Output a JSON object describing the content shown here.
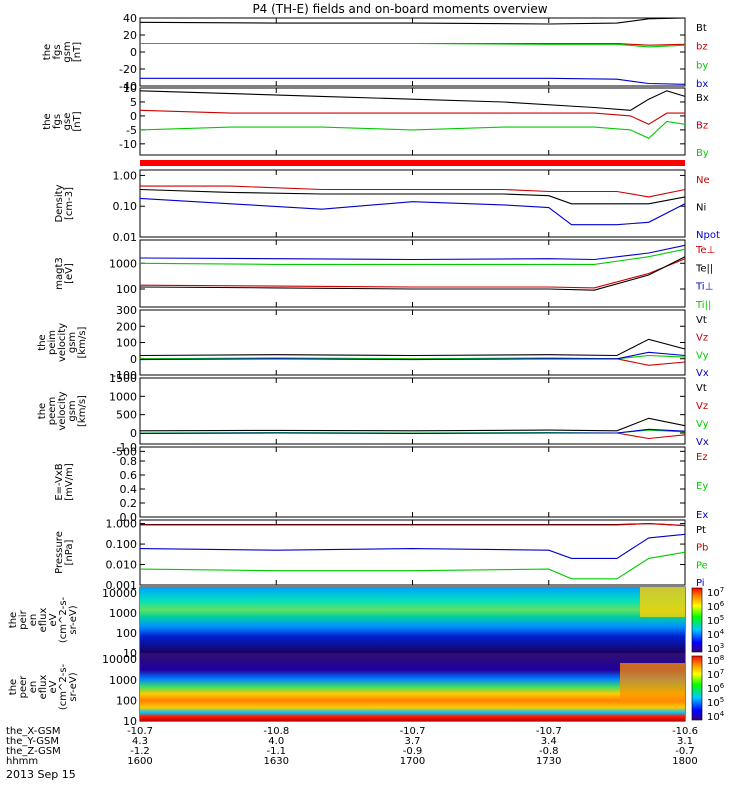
{
  "title": "P4 (TH-E) fields and on-board moments overview",
  "date_label": "2013 Sep 15",
  "time_axis": {
    "start": "1600",
    "end": "1800",
    "ticks": [
      "1600",
      "1630",
      "1700",
      "1730",
      "1800"
    ]
  },
  "ephemeris": {
    "rows": [
      {
        "label": "the_X-GSM",
        "values": [
          "-10.7",
          "-10.8",
          "-10.7",
          "-10.7",
          "-10.6"
        ]
      },
      {
        "label": "the_Y-GSM",
        "values": [
          "4.3",
          "4.0",
          "3.7",
          "3.4",
          "3.1"
        ]
      },
      {
        "label": "the_Z-GSM",
        "values": [
          "-1.2",
          "-1.1",
          "-0.9",
          "-0.8",
          "-0.7"
        ]
      },
      {
        "label": "hhmm",
        "values": [
          "1600",
          "1630",
          "1700",
          "1730",
          "1800"
        ]
      }
    ]
  },
  "colors": {
    "black": "#000000",
    "red": "#cc0000",
    "green": "#00cc00",
    "blue": "#0000cc"
  },
  "chart_data": [
    {
      "type": "line",
      "ylabel": [
        "the",
        "fgs",
        "gsm",
        "[nT]"
      ],
      "ylim": [
        -40,
        40
      ],
      "yticks": [
        "40",
        "20",
        "0",
        "-20",
        "-40"
      ],
      "series": [
        {
          "name": "Bt",
          "color": "#000000",
          "x": [
            1600,
            1630,
            1700,
            1730,
            1745,
            1752,
            1800
          ],
          "values": [
            35,
            34,
            34,
            33,
            34,
            39,
            40
          ]
        },
        {
          "name": "bz",
          "color": "#cc0000",
          "x": [
            1600,
            1630,
            1700,
            1730,
            1745,
            1752,
            1800
          ],
          "values": [
            10,
            10,
            10,
            10,
            10,
            8,
            9
          ]
        },
        {
          "name": "by",
          "color": "#00cc00",
          "x": [
            1600,
            1630,
            1700,
            1730,
            1745,
            1752,
            1800
          ],
          "values": [
            10,
            10,
            10,
            9,
            9,
            6,
            8
          ]
        },
        {
          "name": "bx",
          "color": "#0000cc",
          "x": [
            1600,
            1630,
            1700,
            1730,
            1745,
            1752,
            1800
          ],
          "values": [
            -31,
            -31,
            -31,
            -31,
            -32,
            -37,
            -38
          ]
        }
      ]
    },
    {
      "type": "line",
      "ylabel": [
        "the",
        "fgs",
        "gse",
        "[nT]"
      ],
      "ylim": [
        -14,
        10
      ],
      "yticks": [
        "10",
        "5",
        "0",
        "-5",
        "-10"
      ],
      "series": [
        {
          "name": "Bx",
          "color": "#000000",
          "x": [
            1600,
            1620,
            1640,
            1700,
            1720,
            1740,
            1748,
            1752,
            1756,
            1800
          ],
          "values": [
            9,
            8,
            7,
            6,
            5,
            3,
            2,
            6,
            9,
            7
          ]
        },
        {
          "name": "Bz",
          "color": "#cc0000",
          "x": [
            1600,
            1620,
            1640,
            1700,
            1720,
            1740,
            1748,
            1752,
            1756,
            1800
          ],
          "values": [
            2,
            1,
            1,
            1,
            1,
            1,
            0,
            -3,
            1,
            1
          ]
        },
        {
          "name": "By",
          "color": "#00cc00",
          "x": [
            1600,
            1620,
            1640,
            1700,
            1720,
            1740,
            1748,
            1752,
            1756,
            1800
          ],
          "values": [
            -5,
            -4,
            -4,
            -5,
            -4,
            -4,
            -5,
            -8,
            -2,
            -3
          ]
        }
      ]
    },
    {
      "type": "line",
      "scale": "log",
      "ylabel": [
        "Density",
        "[cm-3]"
      ],
      "ylim": [
        0.01,
        1.5
      ],
      "yticks": [
        "1.00",
        "0.10",
        "0.01"
      ],
      "series": [
        {
          "name": "Ne",
          "color": "#cc0000",
          "x": [
            1600,
            1620,
            1640,
            1700,
            1720,
            1730,
            1735,
            1745,
            1752,
            1800
          ],
          "values": [
            0.45,
            0.45,
            0.35,
            0.35,
            0.35,
            0.3,
            0.3,
            0.3,
            0.2,
            0.35
          ]
        },
        {
          "name": "Ni",
          "color": "#000000",
          "x": [
            1600,
            1620,
            1640,
            1700,
            1720,
            1730,
            1735,
            1745,
            1752,
            1800
          ],
          "values": [
            0.35,
            0.28,
            0.25,
            0.25,
            0.25,
            0.22,
            0.12,
            0.12,
            0.12,
            0.2
          ]
        },
        {
          "name": "Npot",
          "color": "#0000cc",
          "x": [
            1600,
            1620,
            1640,
            1700,
            1720,
            1730,
            1735,
            1745,
            1752,
            1800
          ],
          "values": [
            0.18,
            0.12,
            0.08,
            0.14,
            0.11,
            0.09,
            0.025,
            0.025,
            0.03,
            0.12
          ]
        }
      ]
    },
    {
      "type": "line",
      "scale": "log",
      "ylabel": [
        "magt3",
        "[eV]"
      ],
      "ylim": [
        20,
        8000
      ],
      "yticks": [
        "1000",
        "100"
      ],
      "series": [
        {
          "name": "Te⊥",
          "color": "#cc0000",
          "x": [
            1600,
            1630,
            1700,
            1730,
            1740,
            1752,
            1800
          ],
          "values": [
            140,
            130,
            120,
            120,
            110,
            400,
            1500
          ]
        },
        {
          "name": "Te||",
          "color": "#000000",
          "x": [
            1600,
            1630,
            1700,
            1730,
            1740,
            1752,
            1800
          ],
          "values": [
            120,
            110,
            100,
            100,
            90,
            350,
            1800
          ]
        },
        {
          "name": "Ti⊥",
          "color": "#0000cc",
          "x": [
            1600,
            1630,
            1700,
            1730,
            1740,
            1752,
            1800
          ],
          "values": [
            1600,
            1500,
            1400,
            1500,
            1400,
            2500,
            5000
          ]
        },
        {
          "name": "Ti||",
          "color": "#00cc00",
          "x": [
            1600,
            1630,
            1700,
            1730,
            1740,
            1752,
            1800
          ],
          "values": [
            1000,
            900,
            900,
            900,
            900,
            1800,
            3500
          ]
        }
      ]
    },
    {
      "type": "line",
      "ylabel": [
        "the",
        "peim",
        "velocity",
        "gsm",
        "[km/s]"
      ],
      "ylim": [
        -100,
        300
      ],
      "yticks": [
        "300",
        "200",
        "100",
        "0",
        "-100"
      ],
      "series": [
        {
          "name": "Vt",
          "color": "#000000",
          "x": [
            1600,
            1630,
            1700,
            1730,
            1745,
            1752,
            1800
          ],
          "values": [
            20,
            25,
            20,
            25,
            20,
            120,
            60
          ]
        },
        {
          "name": "Vz",
          "color": "#cc0000",
          "x": [
            1600,
            1630,
            1700,
            1730,
            1745,
            1752,
            1800
          ],
          "values": [
            0,
            0,
            0,
            0,
            0,
            -40,
            -20
          ]
        },
        {
          "name": "Vy",
          "color": "#00cc00",
          "x": [
            1600,
            1630,
            1700,
            1730,
            1745,
            1752,
            1800
          ],
          "values": [
            0,
            5,
            0,
            5,
            0,
            20,
            10
          ]
        },
        {
          "name": "Vx",
          "color": "#0000cc",
          "x": [
            1600,
            1630,
            1700,
            1730,
            1745,
            1752,
            1800
          ],
          "values": [
            -5,
            0,
            -5,
            0,
            0,
            40,
            20
          ]
        }
      ]
    },
    {
      "type": "line",
      "ylabel": [
        "the",
        "peem",
        "velocity",
        "gsm",
        "[km/s]"
      ],
      "ylim": [
        -300,
        1500
      ],
      "yticks": [
        "1500",
        "1000",
        "500",
        "0",
        "-500"
      ],
      "series": [
        {
          "name": "Vt",
          "color": "#000000",
          "x": [
            1600,
            1630,
            1700,
            1730,
            1745,
            1752,
            1800
          ],
          "values": [
            60,
            70,
            60,
            80,
            60,
            400,
            200
          ]
        },
        {
          "name": "Vz",
          "color": "#cc0000",
          "x": [
            1600,
            1630,
            1700,
            1730,
            1745,
            1752,
            1800
          ],
          "values": [
            0,
            0,
            0,
            0,
            0,
            -150,
            -50
          ]
        },
        {
          "name": "Vy",
          "color": "#00cc00",
          "x": [
            1600,
            1630,
            1700,
            1730,
            1745,
            1752,
            1800
          ],
          "values": [
            0,
            10,
            0,
            10,
            0,
            80,
            30
          ]
        },
        {
          "name": "Vx",
          "color": "#0000cc",
          "x": [
            1600,
            1630,
            1700,
            1730,
            1745,
            1752,
            1800
          ],
          "values": [
            -10,
            0,
            -10,
            0,
            0,
            100,
            50
          ]
        }
      ]
    },
    {
      "type": "line",
      "ylabel": [
        "E=-VxB",
        "[mV/m]"
      ],
      "ylim": [
        0,
        1
      ],
      "yticks": [
        "1.0",
        "0.8",
        "0.6",
        "0.4",
        "0.2",
        "0.0"
      ],
      "series": [
        {
          "name": "Ez",
          "color": "#cc0000",
          "x": [],
          "values": []
        },
        {
          "name": "Ey",
          "color": "#00cc00",
          "x": [],
          "values": []
        },
        {
          "name": "Ex",
          "color": "#0000cc",
          "x": [],
          "values": []
        }
      ]
    },
    {
      "type": "line",
      "scale": "log",
      "ylabel": [
        "Pressure",
        "[nPa]"
      ],
      "ylim": [
        0.001,
        1.5
      ],
      "yticks": [
        "1.000",
        "0.100",
        "0.010",
        "0.001"
      ],
      "series": [
        {
          "name": "Pt",
          "color": "#000000",
          "x": [
            1600,
            1630,
            1700,
            1730,
            1745,
            1752,
            1800
          ],
          "values": [
            0.9,
            0.9,
            0.9,
            0.9,
            0.9,
            1.0,
            0.8
          ]
        },
        {
          "name": "Pb",
          "color": "#cc0000",
          "x": [
            1600,
            1630,
            1700,
            1730,
            1745,
            1752,
            1800
          ],
          "values": [
            0.85,
            0.85,
            0.85,
            0.85,
            0.85,
            1.0,
            0.8
          ]
        },
        {
          "name": "Pe",
          "color": "#00cc00",
          "x": [
            1600,
            1630,
            1700,
            1730,
            1735,
            1745,
            1752,
            1800
          ],
          "values": [
            0.006,
            0.005,
            0.005,
            0.006,
            0.002,
            0.002,
            0.02,
            0.04
          ]
        },
        {
          "name": "Pi",
          "color": "#0000cc",
          "x": [
            1600,
            1630,
            1700,
            1730,
            1735,
            1745,
            1752,
            1800
          ],
          "values": [
            0.06,
            0.05,
            0.06,
            0.05,
            0.02,
            0.02,
            0.2,
            0.3
          ]
        }
      ]
    },
    {
      "type": "heatmap",
      "scale": "log",
      "ylabel": [
        "the",
        "peir",
        "en",
        "eflux",
        "eV",
        "(cm^2-s-",
        "sr-eV)"
      ],
      "ylim": [
        10,
        20000
      ],
      "yticks": [
        "10000",
        "1000",
        "100",
        "10"
      ],
      "colorbar": {
        "ticks": [
          "10^7",
          "10^6",
          "10^5",
          "10^4",
          "10^3"
        ]
      }
    },
    {
      "type": "heatmap",
      "scale": "log",
      "ylabel": [
        "the",
        "peer",
        "en",
        "eflux",
        "eV",
        "(cm^2-s-",
        "sr-eV)"
      ],
      "ylim": [
        10,
        20000
      ],
      "yticks": [
        "10000",
        "1000",
        "100",
        "10"
      ],
      "colorbar": {
        "ticks": [
          "10^8",
          "10^7",
          "10^6",
          "10^5",
          "10^4"
        ]
      }
    }
  ]
}
